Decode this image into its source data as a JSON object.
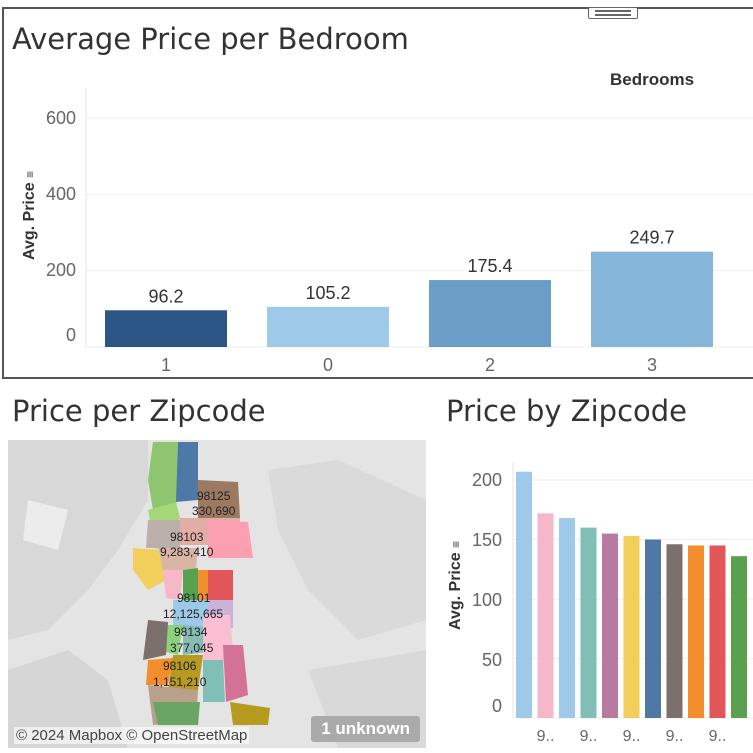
{
  "bedroom_chart": {
    "title": "Average Price per Bedroom",
    "column_header": "Bedrooms",
    "y_axis_title": "Avg. Price",
    "sort_icon": "sort-descending-icon",
    "y_ticks": [
      "600",
      "400",
      "200",
      "0"
    ]
  },
  "zipcode_map": {
    "title": "Price per Zipcode",
    "attribution": "© 2024 Mapbox © OpenStreetMap",
    "unknown_badge": "1 unknown",
    "labels": [
      {
        "zip": "98125",
        "value": "330,690"
      },
      {
        "zip": "98103",
        "value": "9,283,410"
      },
      {
        "zip": "98101",
        "value": "12,125,665"
      },
      {
        "zip": "98134",
        "value": "377,045"
      },
      {
        "zip": "98106",
        "value": "1,151,210"
      }
    ]
  },
  "zipcode_chart": {
    "title": "Price by Zipcode",
    "y_axis_title": "Avg. Price",
    "sort_icon": "sort-descending-icon",
    "y_ticks": [
      "200",
      "150",
      "100",
      "50",
      "0"
    ],
    "x_tick_label": "9.."
  },
  "chart_data": [
    {
      "type": "bar",
      "title": "Average Price per Bedroom",
      "xlabel": "Bedrooms",
      "ylabel": "Avg. Price",
      "categories": [
        "1",
        "0",
        "2",
        "3"
      ],
      "values": [
        96.2,
        105.2,
        175.4,
        249.7
      ],
      "data_labels": [
        "96.2",
        "105.2",
        "175.4",
        "249.7"
      ],
      "colors": [
        "#2c5686",
        "#9fc9e8",
        "#6a9ec6",
        "#86b5da"
      ],
      "ylim": [
        0,
        600
      ],
      "grid": true
    },
    {
      "type": "bar",
      "title": "Price by Zipcode",
      "ylabel": "Avg. Price",
      "categories": [
        "9..",
        "9..",
        "9..",
        "9..",
        "9..",
        "9..",
        "9..",
        "9..",
        "9..",
        "9..",
        "9.."
      ],
      "values": [
        207,
        172,
        168,
        160,
        155,
        153,
        150,
        146,
        145,
        145,
        136
      ],
      "colors": [
        "#9fc9e8",
        "#f6b8c8",
        "#9fc9e8",
        "#7fbfb5",
        "#b77aa0",
        "#f2cf5b",
        "#4e79a7",
        "#7b706b",
        "#f28e2b",
        "#e15759",
        "#59a14f"
      ],
      "ylim": [
        0,
        210
      ],
      "grid": true
    }
  ],
  "colors": {
    "panel_border": "#555555",
    "map_background": "#e4e4e4"
  }
}
